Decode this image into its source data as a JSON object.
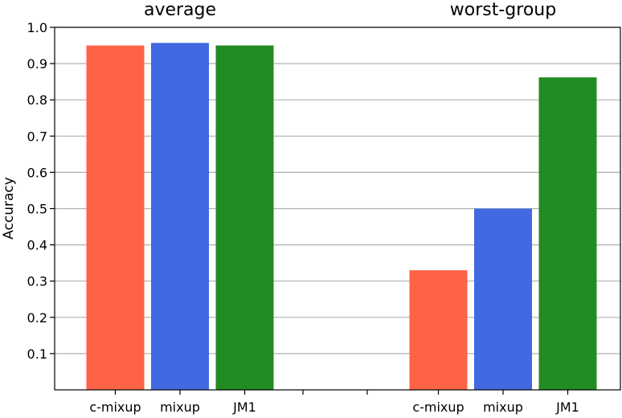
{
  "chart_data": {
    "type": "bar",
    "ylabel": "Accuracy",
    "ylim": [
      0,
      1.0
    ],
    "yticks": [
      "0.1",
      "0.2",
      "0.3",
      "0.4",
      "0.5",
      "0.6",
      "0.7",
      "0.8",
      "0.9",
      "1.0"
    ],
    "grid": "horizontal",
    "groups": [
      {
        "label": "average",
        "bars": [
          {
            "category": "c-mixup",
            "value": 0.95,
            "color": "#ff6347"
          },
          {
            "category": "mixup",
            "value": 0.957,
            "color": "#4169e1"
          },
          {
            "category": "JM1",
            "value": 0.95,
            "color": "#228b22"
          }
        ]
      },
      {
        "label": "worst-group",
        "bars": [
          {
            "category": "c-mixup",
            "value": 0.33,
            "color": "#ff6347"
          },
          {
            "category": "mixup",
            "value": 0.5,
            "color": "#4169e1"
          },
          {
            "category": "JM1",
            "value": 0.862,
            "color": "#228b22"
          }
        ]
      }
    ]
  }
}
